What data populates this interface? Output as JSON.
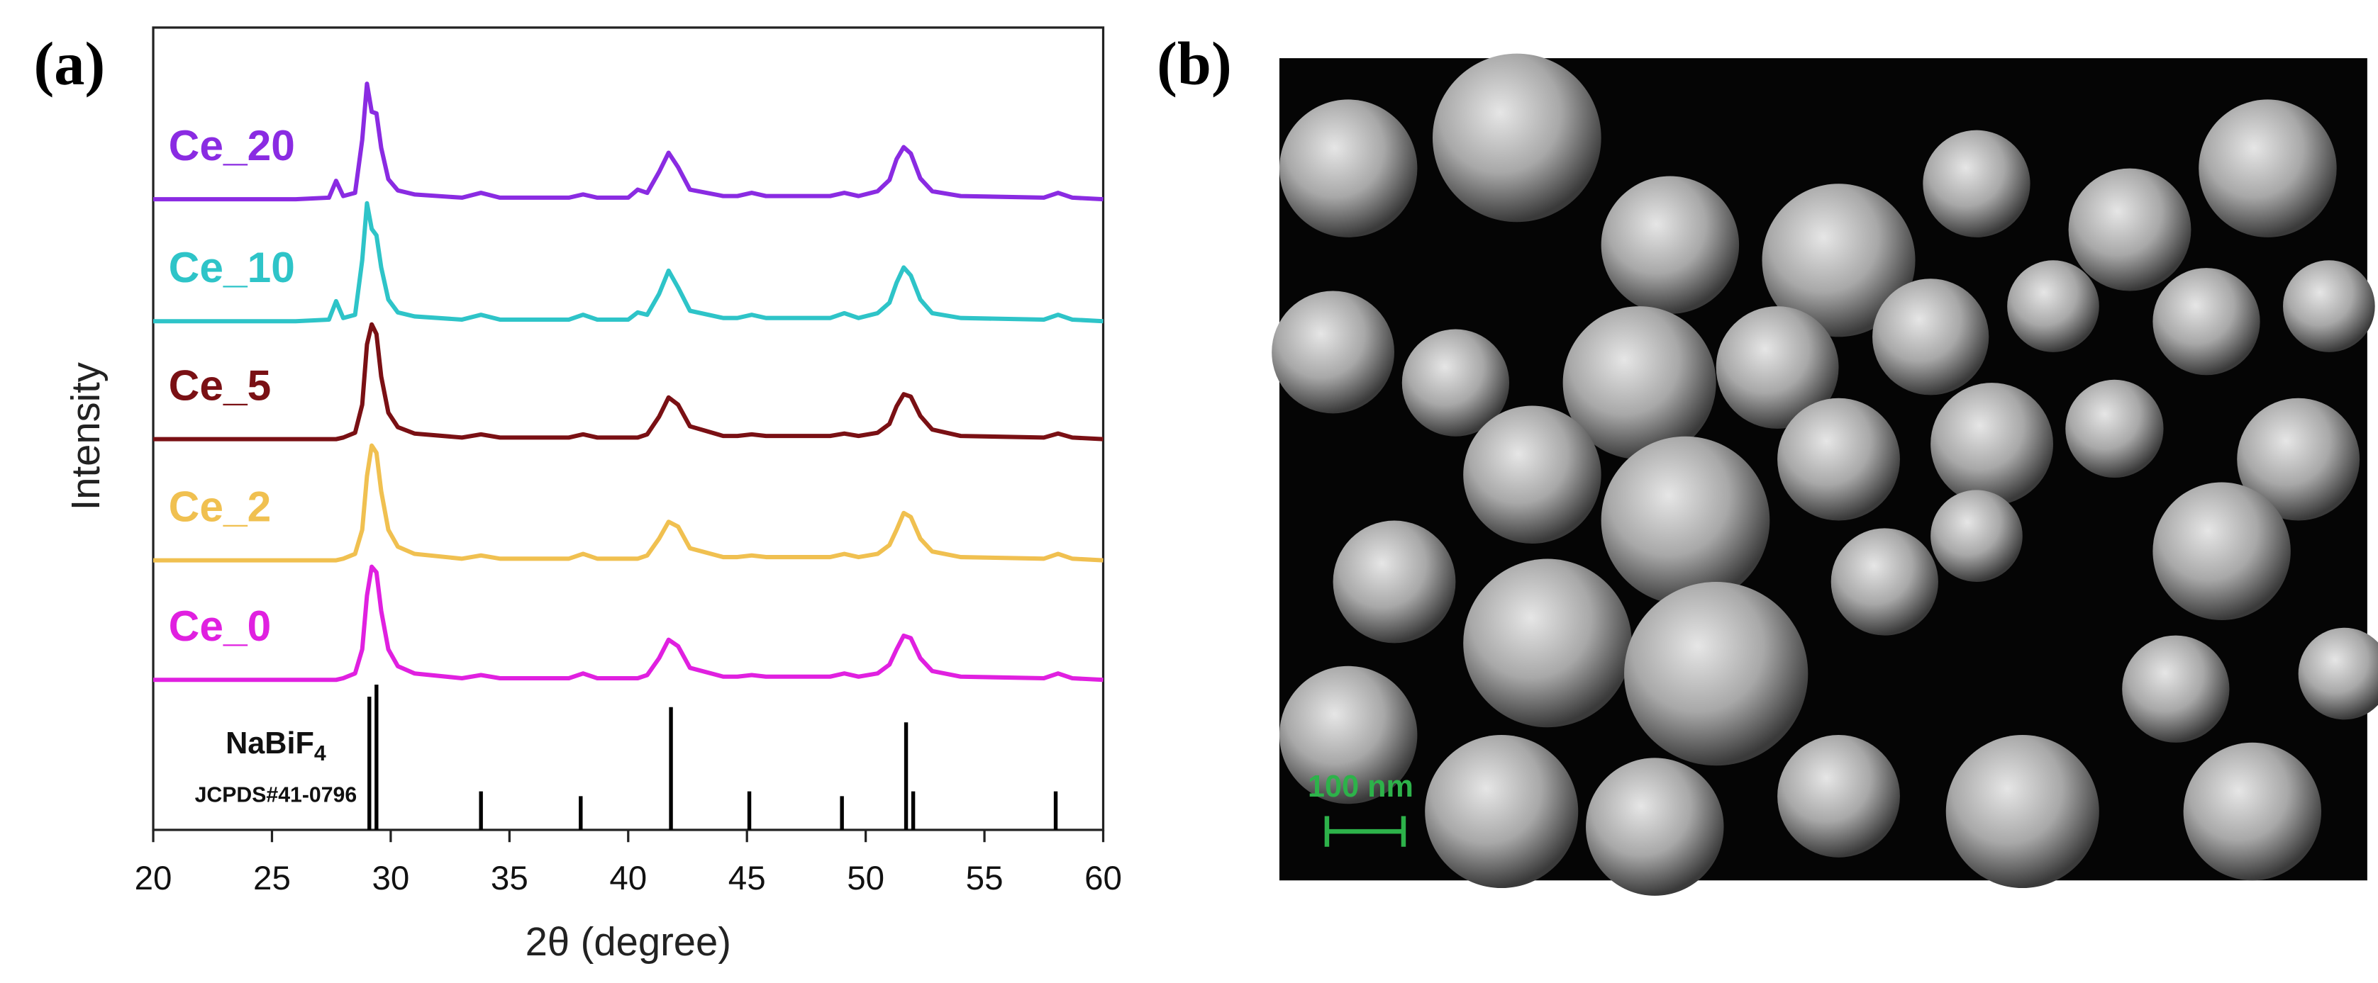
{
  "chart_data": {
    "type": "line",
    "panel_label": "(a)",
    "xlabel": "2θ (degree)",
    "ylabel": "Intensity",
    "xlim": [
      20,
      60
    ],
    "xticks": [
      20,
      25,
      30,
      35,
      40,
      45,
      50,
      55,
      60
    ],
    "ylim": [
      0,
      100
    ],
    "x": [
      20,
      22,
      24,
      26,
      27.4,
      27.7,
      28.0,
      28.5,
      28.8,
      29.0,
      29.2,
      29.4,
      29.6,
      29.9,
      30.3,
      31,
      33,
      33.8,
      34.6,
      37.5,
      38.1,
      38.7,
      40,
      40.4,
      40.8,
      41.3,
      41.7,
      42.1,
      42.6,
      44,
      44.6,
      45.2,
      45.8,
      48.5,
      49.1,
      49.7,
      50.5,
      51.0,
      51.3,
      51.6,
      51.9,
      52.3,
      52.8,
      54,
      57.5,
      58.1,
      58.7,
      60
    ],
    "series": [
      {
        "name": "Ce_20",
        "color": "#8a2be2",
        "values": [
          78.6,
          78.6,
          78.6,
          78.6,
          78.8,
          80.9,
          79.0,
          79.4,
          86.0,
          93.0,
          89.5,
          89.3,
          85.0,
          81.1,
          79.7,
          79.2,
          78.8,
          79.4,
          78.8,
          78.8,
          79.2,
          78.8,
          78.8,
          79.8,
          79.4,
          82.0,
          84.4,
          82.6,
          79.8,
          79.0,
          79.0,
          79.4,
          79.0,
          79.0,
          79.4,
          79.0,
          79.6,
          81.0,
          83.6,
          85.1,
          84.3,
          81.2,
          79.6,
          79.0,
          78.8,
          79.4,
          78.8,
          78.6
        ]
      },
      {
        "name": "Ce_10",
        "color": "#2ec4c8",
        "values": [
          63.4,
          63.4,
          63.4,
          63.4,
          63.6,
          65.9,
          63.8,
          64.2,
          71.0,
          78.1,
          74.9,
          74.1,
          70.1,
          66.1,
          64.5,
          64.0,
          63.6,
          64.2,
          63.6,
          63.6,
          64.2,
          63.6,
          63.6,
          64.5,
          64.2,
          66.8,
          69.7,
          67.6,
          64.7,
          63.8,
          63.8,
          64.2,
          63.8,
          63.8,
          64.4,
          63.8,
          64.4,
          65.7,
          68.2,
          70.1,
          69.1,
          66.1,
          64.4,
          63.8,
          63.6,
          64.2,
          63.6,
          63.4
        ]
      },
      {
        "name": "Ce_5",
        "color": "#7a1014",
        "values": [
          48.7,
          48.7,
          48.7,
          48.7,
          48.7,
          48.7,
          48.9,
          49.5,
          53.0,
          60.5,
          63.0,
          61.8,
          56.5,
          52.0,
          50.2,
          49.4,
          48.9,
          49.3,
          48.9,
          48.9,
          49.3,
          48.9,
          48.9,
          48.9,
          49.3,
          51.5,
          53.9,
          53.0,
          50.3,
          49.1,
          49.1,
          49.3,
          49.1,
          49.1,
          49.4,
          49.1,
          49.5,
          50.6,
          52.8,
          54.3,
          54.0,
          51.6,
          49.9,
          49.1,
          48.9,
          49.4,
          48.9,
          48.7
        ]
      },
      {
        "name": "Ce_2",
        "color": "#f0c050",
        "values": [
          33.6,
          33.6,
          33.6,
          33.6,
          33.6,
          33.6,
          33.8,
          34.4,
          37.4,
          44.1,
          47.9,
          47.0,
          42.2,
          37.4,
          35.3,
          34.4,
          33.8,
          34.2,
          33.8,
          33.8,
          34.4,
          33.8,
          33.8,
          33.8,
          34.2,
          36.3,
          38.4,
          37.8,
          35.1,
          34.0,
          34.0,
          34.2,
          34.0,
          34.0,
          34.4,
          34.0,
          34.4,
          35.5,
          37.4,
          39.5,
          39.0,
          36.3,
          34.7,
          34.0,
          33.8,
          34.4,
          33.8,
          33.6
        ]
      },
      {
        "name": "Ce_0",
        "color": "#e020e0",
        "values": [
          18.7,
          18.7,
          18.7,
          18.7,
          18.7,
          18.7,
          18.9,
          19.5,
          22.5,
          29.2,
          32.8,
          32.1,
          27.3,
          22.5,
          20.4,
          19.5,
          18.9,
          19.3,
          18.9,
          18.9,
          19.5,
          18.9,
          18.9,
          18.9,
          19.3,
          21.4,
          23.7,
          22.9,
          20.2,
          19.1,
          19.1,
          19.3,
          19.1,
          19.1,
          19.5,
          19.1,
          19.5,
          20.6,
          22.5,
          24.2,
          23.9,
          21.4,
          19.8,
          19.1,
          18.9,
          19.5,
          18.9,
          18.7
        ]
      }
    ],
    "reference": {
      "label": "NaBiF",
      "label_sub": "4",
      "card": "JCPDS#41-0796",
      "color": "#000000",
      "x": [
        29.1,
        29.4,
        33.8,
        38.0,
        41.8,
        45.1,
        49.0,
        51.7,
        52.0,
        58.0
      ],
      "values": [
        16.6,
        18.1,
        4.8,
        4.2,
        15.3,
        4.8,
        4.2,
        13.4,
        4.8,
        4.8
      ]
    }
  },
  "image_panel": {
    "panel_label": "(b)",
    "scale_bar": "100 nm"
  }
}
